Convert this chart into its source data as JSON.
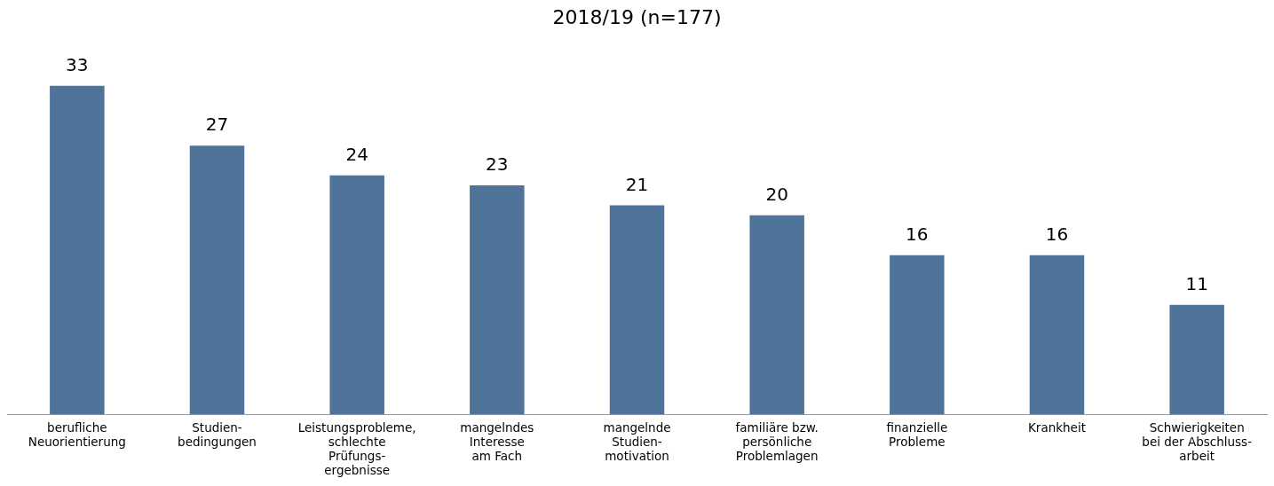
{
  "chart_data": {
    "type": "bar",
    "title": "2018/19 (n=177)",
    "categories": [
      "berufliche\nNeuorientierung",
      "Studien-\nbedingungen",
      "Leistungsprobleme,\nschlechte\nPrüfungs-\nergebnisse",
      "mangelndes\nInteresse\nam Fach",
      "mangelnde\nStudien-\nmotivation",
      "familiäre bzw.\npersönliche\nProblemlagen",
      "finanzielle\nProbleme",
      "Krankheit",
      "Schwierigkeiten\nbei der Abschluss-\narbeit"
    ],
    "values": [
      33,
      27,
      24,
      23,
      21,
      20,
      16,
      16,
      11
    ],
    "color": "#4f7399",
    "data_labels": true,
    "grid": false,
    "legend": false
  }
}
